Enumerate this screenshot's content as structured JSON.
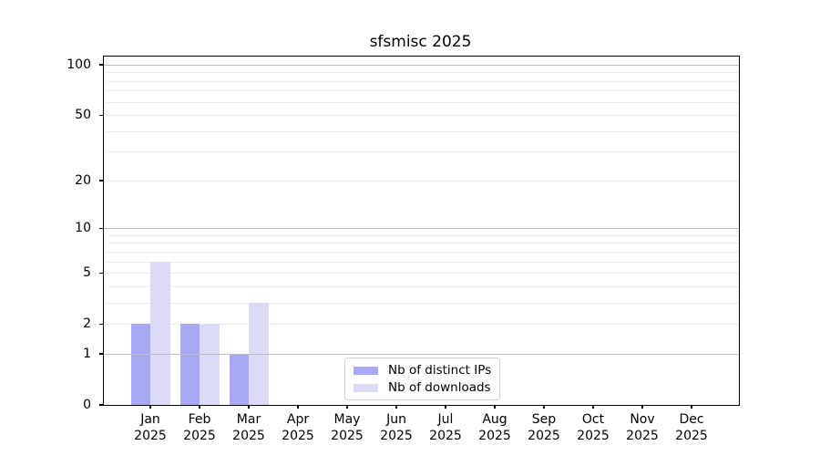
{
  "chart_data": {
    "type": "bar",
    "title": "sfsmisc 2025",
    "categories": [
      "Jan",
      "Feb",
      "Mar",
      "Apr",
      "May",
      "Jun",
      "Jul",
      "Aug",
      "Sep",
      "Oct",
      "Nov",
      "Dec"
    ],
    "category_year": "2025",
    "series": [
      {
        "name": "Nb of distinct IPs",
        "color": "#a9a9f3",
        "values": [
          2,
          2,
          1,
          0,
          0,
          0,
          0,
          0,
          0,
          0,
          0,
          0
        ]
      },
      {
        "name": "Nb of downloads",
        "color": "#dbdbf8",
        "values": [
          6,
          2,
          3,
          0,
          0,
          0,
          0,
          0,
          0,
          0,
          0,
          0
        ]
      }
    ],
    "y_scale": "log1p",
    "y_ticks": [
      0,
      1,
      2,
      5,
      10,
      20,
      50,
      100
    ],
    "y_tick_labels": [
      "0",
      "1",
      "2",
      "5",
      "10",
      "20",
      "50",
      "100"
    ],
    "y_major_gridlines": [
      1,
      10,
      100
    ],
    "y_minor_gridlines": [
      2,
      3,
      4,
      5,
      6,
      7,
      8,
      9,
      20,
      30,
      40,
      50,
      60,
      70,
      80,
      90
    ],
    "ylim": [
      0,
      110
    ],
    "grid": true,
    "legend_position": "lower-center-inside"
  },
  "colors": {
    "major_grid": "#bdbdbd",
    "minor_grid": "#ececec",
    "axis": "#000000",
    "legend_border": "#d0d0d0",
    "background": "#ffffff"
  }
}
